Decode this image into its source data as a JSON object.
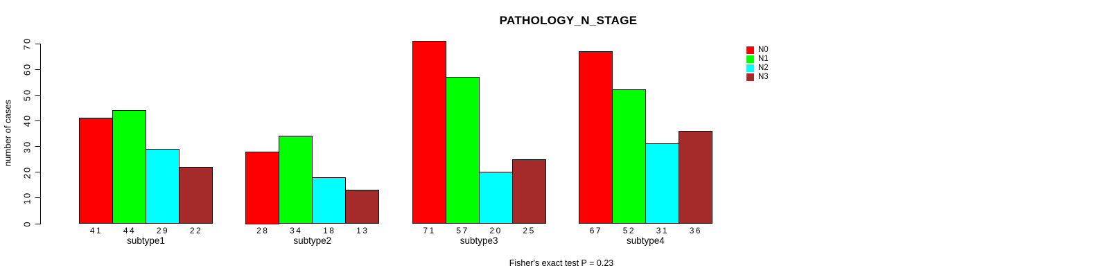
{
  "chart_data": {
    "type": "bar",
    "title": "PATHOLOGY_N_STAGE",
    "ylabel": "number of cases",
    "xlabel": "",
    "caption": "Fisher's exact test P = 0.23",
    "categories": [
      "subtype1",
      "subtype2",
      "subtype3",
      "subtype4"
    ],
    "series": [
      {
        "name": "N0",
        "color": "#ff0000",
        "values": [
          41,
          28,
          71,
          67
        ]
      },
      {
        "name": "N1",
        "color": "#00ff00",
        "values": [
          44,
          34,
          57,
          52
        ]
      },
      {
        "name": "N2",
        "color": "#00ffff",
        "values": [
          29,
          18,
          20,
          31
        ]
      },
      {
        "name": "N3",
        "color": "#a52a2a",
        "values": [
          22,
          13,
          25,
          36
        ]
      }
    ],
    "ylim": [
      0,
      70
    ],
    "yticks": [
      0,
      10,
      20,
      30,
      40,
      50,
      60,
      70
    ],
    "bar_border_color": "#000000",
    "show_value_labels": true,
    "legend_position": "right",
    "grid": "off"
  }
}
